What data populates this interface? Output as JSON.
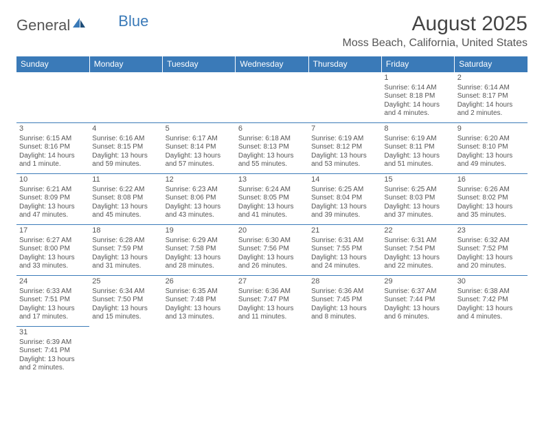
{
  "logo": {
    "text1": "General",
    "text2": "Blue"
  },
  "title": "August 2025",
  "location": "Moss Beach, California, United States",
  "colors": {
    "header_bg": "#3a7ab8",
    "header_text": "#ffffff",
    "border": "#3a7ab8",
    "text": "#555555",
    "page_bg": "#ffffff"
  },
  "weekdays": [
    "Sunday",
    "Monday",
    "Tuesday",
    "Wednesday",
    "Thursday",
    "Friday",
    "Saturday"
  ],
  "weeks": [
    [
      null,
      null,
      null,
      null,
      null,
      {
        "n": "1",
        "sr": "Sunrise: 6:14 AM",
        "ss": "Sunset: 8:18 PM",
        "d1": "Daylight: 14 hours",
        "d2": "and 4 minutes."
      },
      {
        "n": "2",
        "sr": "Sunrise: 6:14 AM",
        "ss": "Sunset: 8:17 PM",
        "d1": "Daylight: 14 hours",
        "d2": "and 2 minutes."
      }
    ],
    [
      {
        "n": "3",
        "sr": "Sunrise: 6:15 AM",
        "ss": "Sunset: 8:16 PM",
        "d1": "Daylight: 14 hours",
        "d2": "and 1 minute."
      },
      {
        "n": "4",
        "sr": "Sunrise: 6:16 AM",
        "ss": "Sunset: 8:15 PM",
        "d1": "Daylight: 13 hours",
        "d2": "and 59 minutes."
      },
      {
        "n": "5",
        "sr": "Sunrise: 6:17 AM",
        "ss": "Sunset: 8:14 PM",
        "d1": "Daylight: 13 hours",
        "d2": "and 57 minutes."
      },
      {
        "n": "6",
        "sr": "Sunrise: 6:18 AM",
        "ss": "Sunset: 8:13 PM",
        "d1": "Daylight: 13 hours",
        "d2": "and 55 minutes."
      },
      {
        "n": "7",
        "sr": "Sunrise: 6:19 AM",
        "ss": "Sunset: 8:12 PM",
        "d1": "Daylight: 13 hours",
        "d2": "and 53 minutes."
      },
      {
        "n": "8",
        "sr": "Sunrise: 6:19 AM",
        "ss": "Sunset: 8:11 PM",
        "d1": "Daylight: 13 hours",
        "d2": "and 51 minutes."
      },
      {
        "n": "9",
        "sr": "Sunrise: 6:20 AM",
        "ss": "Sunset: 8:10 PM",
        "d1": "Daylight: 13 hours",
        "d2": "and 49 minutes."
      }
    ],
    [
      {
        "n": "10",
        "sr": "Sunrise: 6:21 AM",
        "ss": "Sunset: 8:09 PM",
        "d1": "Daylight: 13 hours",
        "d2": "and 47 minutes."
      },
      {
        "n": "11",
        "sr": "Sunrise: 6:22 AM",
        "ss": "Sunset: 8:08 PM",
        "d1": "Daylight: 13 hours",
        "d2": "and 45 minutes."
      },
      {
        "n": "12",
        "sr": "Sunrise: 6:23 AM",
        "ss": "Sunset: 8:06 PM",
        "d1": "Daylight: 13 hours",
        "d2": "and 43 minutes."
      },
      {
        "n": "13",
        "sr": "Sunrise: 6:24 AM",
        "ss": "Sunset: 8:05 PM",
        "d1": "Daylight: 13 hours",
        "d2": "and 41 minutes."
      },
      {
        "n": "14",
        "sr": "Sunrise: 6:25 AM",
        "ss": "Sunset: 8:04 PM",
        "d1": "Daylight: 13 hours",
        "d2": "and 39 minutes."
      },
      {
        "n": "15",
        "sr": "Sunrise: 6:25 AM",
        "ss": "Sunset: 8:03 PM",
        "d1": "Daylight: 13 hours",
        "d2": "and 37 minutes."
      },
      {
        "n": "16",
        "sr": "Sunrise: 6:26 AM",
        "ss": "Sunset: 8:02 PM",
        "d1": "Daylight: 13 hours",
        "d2": "and 35 minutes."
      }
    ],
    [
      {
        "n": "17",
        "sr": "Sunrise: 6:27 AM",
        "ss": "Sunset: 8:00 PM",
        "d1": "Daylight: 13 hours",
        "d2": "and 33 minutes."
      },
      {
        "n": "18",
        "sr": "Sunrise: 6:28 AM",
        "ss": "Sunset: 7:59 PM",
        "d1": "Daylight: 13 hours",
        "d2": "and 31 minutes."
      },
      {
        "n": "19",
        "sr": "Sunrise: 6:29 AM",
        "ss": "Sunset: 7:58 PM",
        "d1": "Daylight: 13 hours",
        "d2": "and 28 minutes."
      },
      {
        "n": "20",
        "sr": "Sunrise: 6:30 AM",
        "ss": "Sunset: 7:56 PM",
        "d1": "Daylight: 13 hours",
        "d2": "and 26 minutes."
      },
      {
        "n": "21",
        "sr": "Sunrise: 6:31 AM",
        "ss": "Sunset: 7:55 PM",
        "d1": "Daylight: 13 hours",
        "d2": "and 24 minutes."
      },
      {
        "n": "22",
        "sr": "Sunrise: 6:31 AM",
        "ss": "Sunset: 7:54 PM",
        "d1": "Daylight: 13 hours",
        "d2": "and 22 minutes."
      },
      {
        "n": "23",
        "sr": "Sunrise: 6:32 AM",
        "ss": "Sunset: 7:52 PM",
        "d1": "Daylight: 13 hours",
        "d2": "and 20 minutes."
      }
    ],
    [
      {
        "n": "24",
        "sr": "Sunrise: 6:33 AM",
        "ss": "Sunset: 7:51 PM",
        "d1": "Daylight: 13 hours",
        "d2": "and 17 minutes."
      },
      {
        "n": "25",
        "sr": "Sunrise: 6:34 AM",
        "ss": "Sunset: 7:50 PM",
        "d1": "Daylight: 13 hours",
        "d2": "and 15 minutes."
      },
      {
        "n": "26",
        "sr": "Sunrise: 6:35 AM",
        "ss": "Sunset: 7:48 PM",
        "d1": "Daylight: 13 hours",
        "d2": "and 13 minutes."
      },
      {
        "n": "27",
        "sr": "Sunrise: 6:36 AM",
        "ss": "Sunset: 7:47 PM",
        "d1": "Daylight: 13 hours",
        "d2": "and 11 minutes."
      },
      {
        "n": "28",
        "sr": "Sunrise: 6:36 AM",
        "ss": "Sunset: 7:45 PM",
        "d1": "Daylight: 13 hours",
        "d2": "and 8 minutes."
      },
      {
        "n": "29",
        "sr": "Sunrise: 6:37 AM",
        "ss": "Sunset: 7:44 PM",
        "d1": "Daylight: 13 hours",
        "d2": "and 6 minutes."
      },
      {
        "n": "30",
        "sr": "Sunrise: 6:38 AM",
        "ss": "Sunset: 7:42 PM",
        "d1": "Daylight: 13 hours",
        "d2": "and 4 minutes."
      }
    ],
    [
      {
        "n": "31",
        "sr": "Sunrise: 6:39 AM",
        "ss": "Sunset: 7:41 PM",
        "d1": "Daylight: 13 hours",
        "d2": "and 2 minutes."
      },
      null,
      null,
      null,
      null,
      null,
      null
    ]
  ]
}
